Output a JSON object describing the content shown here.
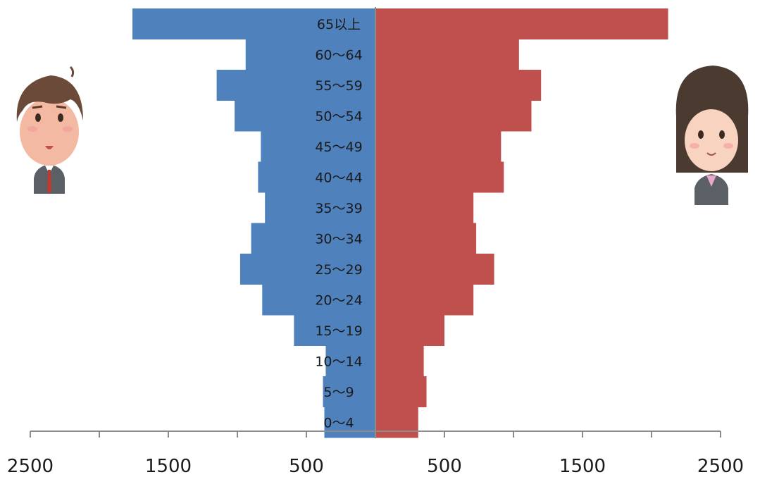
{
  "chart_data": {
    "type": "bar",
    "orientation": "horizontal-population-pyramid",
    "categories": [
      "65以上",
      "60～64",
      "55～59",
      "50～54",
      "45～49",
      "40～44",
      "35～39",
      "30～34",
      "25～29",
      "20～24",
      "15～19",
      "10～14",
      "5～9",
      "0～4"
    ],
    "series": [
      {
        "values": [
          1760,
          940,
          1150,
          1020,
          830,
          850,
          800,
          900,
          980,
          820,
          590,
          360,
          380,
          370
        ],
        "color": "#4f81bd"
      },
      {
        "values": [
          2120,
          1040,
          1200,
          1130,
          910,
          930,
          710,
          730,
          860,
          710,
          500,
          350,
          370,
          310
        ],
        "color": "#c0504d"
      }
    ],
    "x_tick_labels": [
      "2500",
      "1500",
      "500",
      "500",
      "1500",
      "2500"
    ],
    "xlim": [
      -2500,
      2500
    ],
    "grid": false,
    "legend": "none"
  },
  "figures": {
    "left_icon": "businessman-avatar-icon",
    "right_icon": "businesswoman-avatar-icon"
  }
}
